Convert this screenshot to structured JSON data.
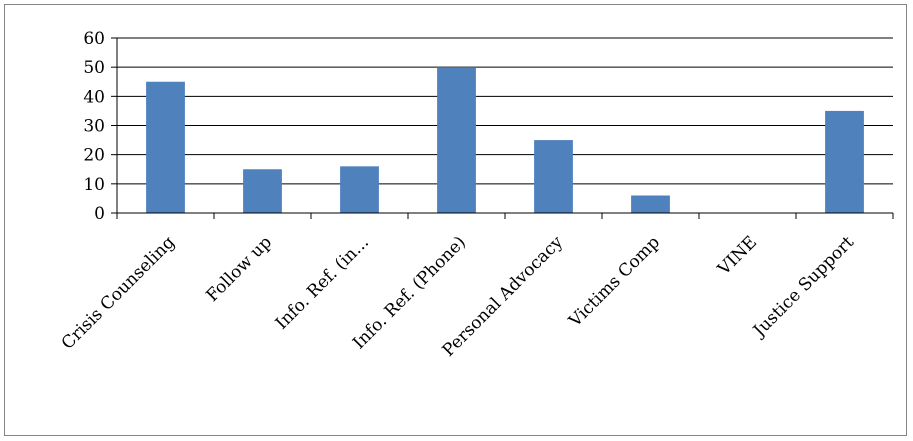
{
  "chart_data": {
    "type": "bar",
    "categories": [
      "Crisis Counseling",
      "Follow up",
      "Info. Ref. (in...",
      "Info. Ref. (Phone)",
      "Personal Advocacy",
      "Victims Comp",
      "VINE",
      "Justice Support"
    ],
    "values": [
      45,
      15,
      16,
      50,
      25,
      6,
      0,
      35
    ],
    "ylim": [
      0,
      60
    ],
    "yticks": [
      0,
      10,
      20,
      30,
      40,
      50,
      60
    ],
    "grid": true,
    "legend": "none",
    "bar_color": "#4f81bd",
    "grid_color": "#000000",
    "title": "",
    "xlabel": "",
    "ylabel": ""
  }
}
